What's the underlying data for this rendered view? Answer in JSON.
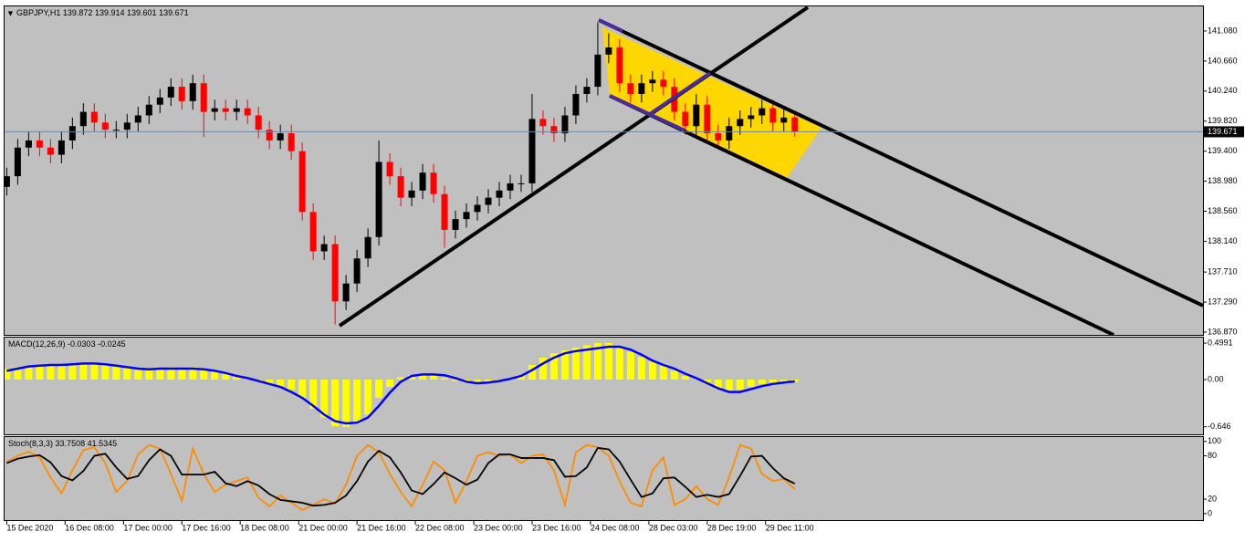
{
  "chart_data": [
    {
      "type": "candlestick",
      "title": "GBPJPY,H1",
      "open": [
        138.9,
        139.05,
        139.45,
        139.55,
        139.45,
        139.35,
        139.55,
        139.75,
        139.95,
        139.8,
        139.7,
        139.7,
        139.8,
        139.9,
        140.05,
        140.15,
        140.3,
        140.1,
        140.35,
        139.95,
        140,
        139.95,
        140,
        139.9,
        139.7,
        139.55,
        139.65,
        139.4,
        138.55,
        138,
        138.1,
        137.3,
        137.55,
        137.9,
        138.2,
        139.25,
        139.05,
        138.75,
        138.85,
        139.1,
        138.8,
        138.3,
        138.45,
        138.55,
        138.65,
        138.75,
        138.85,
        138.95,
        138.95,
        139.85,
        139.75,
        139.65,
        139.9,
        140.2,
        140.3,
        140.75,
        140.85,
        140.35,
        140.2,
        140.35,
        140.4,
        140.3,
        139.95,
        139.75,
        140.05,
        139.65,
        139.55,
        139.75,
        139.85,
        139.9,
        140,
        139.8,
        139.872
      ],
      "high": [
        139.17,
        139.57,
        139.67,
        139.67,
        139.57,
        139.67,
        139.87,
        140.07,
        140.07,
        139.92,
        139.82,
        139.92,
        140.02,
        140.17,
        140.27,
        140.42,
        140.42,
        140.47,
        140.47,
        140.12,
        140.12,
        140.12,
        140.12,
        140.02,
        139.82,
        139.77,
        139.77,
        139.52,
        138.67,
        138.22,
        138.22,
        137.67,
        138.02,
        138.32,
        139.55,
        139.37,
        139.17,
        138.97,
        139.22,
        139.22,
        138.92,
        138.57,
        138.67,
        138.77,
        138.87,
        138.97,
        139.07,
        139.07,
        140.2,
        139.97,
        139.87,
        140.02,
        140.32,
        140.42,
        141.2,
        141.05,
        140.97,
        140.47,
        140.47,
        140.52,
        140.52,
        140.42,
        140.07,
        140.2,
        140.17,
        139.77,
        139.87,
        139.97,
        140.02,
        140.12,
        140.12,
        139.99,
        139.914
      ],
      "low": [
        138.78,
        138.93,
        139.33,
        139.33,
        139.23,
        139.23,
        139.43,
        139.63,
        139.68,
        139.58,
        139.58,
        139.58,
        139.68,
        139.78,
        139.93,
        140.03,
        139.98,
        139.98,
        139.6,
        139.83,
        139.83,
        139.83,
        139.78,
        139.58,
        139.43,
        139.43,
        139.28,
        138.43,
        137.88,
        137.88,
        136.98,
        137.18,
        137.43,
        137.78,
        138.08,
        138.93,
        138.63,
        138.63,
        138.73,
        138.68,
        138.05,
        138.18,
        138.33,
        138.43,
        138.53,
        138.63,
        138.73,
        138.83,
        138.83,
        139.63,
        139.53,
        139.53,
        139.78,
        140.08,
        140.18,
        140.63,
        140.23,
        140.08,
        140.08,
        140.23,
        140.18,
        139.83,
        139.63,
        139.63,
        139.5,
        139.43,
        139.43,
        139.63,
        139.73,
        139.78,
        139.68,
        139.68,
        139.601
      ],
      "close": [
        139.05,
        139.45,
        139.55,
        139.45,
        139.35,
        139.55,
        139.75,
        139.95,
        139.8,
        139.7,
        139.7,
        139.8,
        139.9,
        140.05,
        140.15,
        140.3,
        140.1,
        140.35,
        139.95,
        140,
        139.95,
        140,
        139.9,
        139.7,
        139.55,
        139.65,
        139.4,
        138.55,
        138,
        138.1,
        137.3,
        137.55,
        137.9,
        138.2,
        139.25,
        139.05,
        138.75,
        138.85,
        139.1,
        138.8,
        138.3,
        138.45,
        138.55,
        138.65,
        138.75,
        138.85,
        138.95,
        138.95,
        139.85,
        139.75,
        139.65,
        139.9,
        140.2,
        140.3,
        140.75,
        140.85,
        140.35,
        140.2,
        140.35,
        140.4,
        140.3,
        139.95,
        139.75,
        140.05,
        139.65,
        139.55,
        139.75,
        139.85,
        139.9,
        140,
        139.8,
        139.87,
        139.671
      ],
      "up_color": "#000000",
      "down_color": "#ff0000",
      "xlim": [
        -0.2,
        109.3
      ],
      "xticks": [
        {
          "value": 0,
          "label": "15 Dec 2020"
        },
        {
          "value": 5.33,
          "label": "16 Dec 08:00"
        },
        {
          "value": 10.67,
          "label": "17 Dec 00:00"
        },
        {
          "value": 16,
          "label": "17 Dec 16:00"
        },
        {
          "value": 21.33,
          "label": "18 Dec 08:00"
        },
        {
          "value": 26.67,
          "label": "21 Dec 00:00"
        },
        {
          "value": 32,
          "label": "21 Dec 16:00"
        },
        {
          "value": 37.33,
          "label": "22 Dec 08:00"
        },
        {
          "value": 42.67,
          "label": "23 Dec 00:00"
        },
        {
          "value": 48,
          "label": "23 Dec 16:00"
        },
        {
          "value": 53.33,
          "label": "24 Dec 08:00"
        },
        {
          "value": 58.67,
          "label": "28 Dec 03:00"
        },
        {
          "value": 64,
          "label": "28 Dec 19:00"
        },
        {
          "value": 69.33,
          "label": "29 Dec 11:00"
        }
      ],
      "ylim": [
        136.832,
        141.424
      ],
      "yticks": [
        {
          "value": 141.08,
          "label": "141.080"
        },
        {
          "value": 140.66,
          "label": "140.660"
        },
        {
          "value": 140.24,
          "label": "140.240"
        },
        {
          "value": 139.82,
          "label": "139.820"
        },
        {
          "value": 139.4,
          "label": "139.400"
        },
        {
          "value": 138.98,
          "label": "138.980"
        },
        {
          "value": 138.56,
          "label": "138.560"
        },
        {
          "value": 138.14,
          "label": "138.140"
        },
        {
          "value": 137.71,
          "label": "137.710"
        },
        {
          "value": 137.29,
          "label": "137.290"
        },
        {
          "value": 136.87,
          "label": "136.870"
        }
      ]
    },
    {
      "type": "macd",
      "title": "MACD(12,26,9)",
      "series": [
        {
          "kind": "bar",
          "color": "#ffff00",
          "values": [
            0.15,
            0.17,
            0.19,
            0.2,
            0.2,
            0.21,
            0.22,
            0.23,
            0.22,
            0.2,
            0.19,
            0.17,
            0.15,
            0.15,
            0.16,
            0.17,
            0.16,
            0.17,
            0.15,
            0.13,
            0.1,
            0.06,
            0.02,
            -0.02,
            -0.06,
            -0.09,
            -0.14,
            -0.25,
            -0.4,
            -0.52,
            -0.64,
            -0.65,
            -0.6,
            -0.48,
            -0.25,
            -0.1,
            0.03,
            0.06,
            0.08,
            0.06,
            0.02,
            -0.02,
            -0.05,
            -0.06,
            -0.05,
            -0.02,
            0.02,
            0.06,
            0.2,
            0.3,
            0.36,
            0.4,
            0.44,
            0.47,
            0.5,
            0.5,
            0.44,
            0.38,
            0.31,
            0.25,
            0.19,
            0.12,
            0.05,
            0,
            -0.06,
            -0.13,
            -0.15,
            -0.14,
            -0.1,
            -0.06,
            -0.04,
            -0.03,
            -0.0303
          ]
        },
        {
          "kind": "line",
          "color": "#0000ff",
          "values": [
            0.12,
            0.15,
            0.18,
            0.19,
            0.2,
            0.2,
            0.21,
            0.22,
            0.22,
            0.21,
            0.19,
            0.17,
            0.15,
            0.14,
            0.15,
            0.15,
            0.15,
            0.15,
            0.14,
            0.12,
            0.09,
            0.05,
            0.02,
            -0.02,
            -0.06,
            -0.1,
            -0.17,
            -0.25,
            -0.36,
            -0.48,
            -0.57,
            -0.6,
            -0.59,
            -0.52,
            -0.36,
            -0.18,
            -0.03,
            0.05,
            0.07,
            0.07,
            0.06,
            0.02,
            -0.03,
            -0.05,
            -0.04,
            -0.02,
            0.01,
            0.05,
            0.13,
            0.22,
            0.3,
            0.36,
            0.39,
            0.41,
            0.43,
            0.45,
            0.45,
            0.41,
            0.34,
            0.26,
            0.2,
            0.15,
            0.08,
            0.02,
            -0.05,
            -0.12,
            -0.17,
            -0.17,
            -0.13,
            -0.09,
            -0.06,
            -0.04,
            -0.0245
          ]
        }
      ],
      "ylim": [
        -0.75,
        0.575
      ],
      "yticks": [
        0.4991,
        {
          "value": 0,
          "label": "0.00"
        },
        -0.646
      ]
    },
    {
      "type": "stochastic",
      "title": "Stoch(8,3,3)",
      "series": [
        {
          "kind": "line",
          "color": "#ff8c00",
          "values": [
            72,
            80,
            86,
            78,
            50,
            28,
            60,
            88,
            92,
            70,
            30,
            45,
            82,
            95,
            90,
            55,
            18,
            90,
            55,
            30,
            40,
            45,
            50,
            22,
            10,
            25,
            15,
            5,
            12,
            20,
            14,
            40,
            80,
            95,
            85,
            55,
            30,
            10,
            40,
            72,
            60,
            15,
            45,
            80,
            85,
            80,
            82,
            70,
            80,
            82,
            60,
            12,
            85,
            95,
            92,
            80,
            45,
            15,
            10,
            60,
            78,
            12,
            20,
            38,
            20,
            12,
            50,
            95,
            90,
            55,
            45,
            48,
            33.7508
          ]
        },
        {
          "kind": "line",
          "color": "#000000",
          "values": [
            70,
            76,
            79,
            81,
            71,
            52,
            46,
            59,
            80,
            83,
            64,
            48,
            52,
            74,
            89,
            80,
            54,
            54,
            54,
            58,
            42,
            38,
            45,
            39,
            27,
            19,
            17,
            15,
            11,
            12,
            15,
            25,
            45,
            72,
            87,
            78,
            57,
            32,
            27,
            41,
            57,
            49,
            40,
            47,
            70,
            82,
            82,
            77,
            77,
            77,
            74,
            51,
            52,
            64,
            91,
            89,
            72,
            47,
            23,
            28,
            49,
            50,
            37,
            23,
            26,
            23,
            27,
            52,
            79,
            80,
            63,
            49,
            41.5345
          ]
        }
      ],
      "ylim": [
        -9,
        106
      ],
      "yticks": [
        100,
        80,
        20,
        0
      ]
    }
  ]
}
